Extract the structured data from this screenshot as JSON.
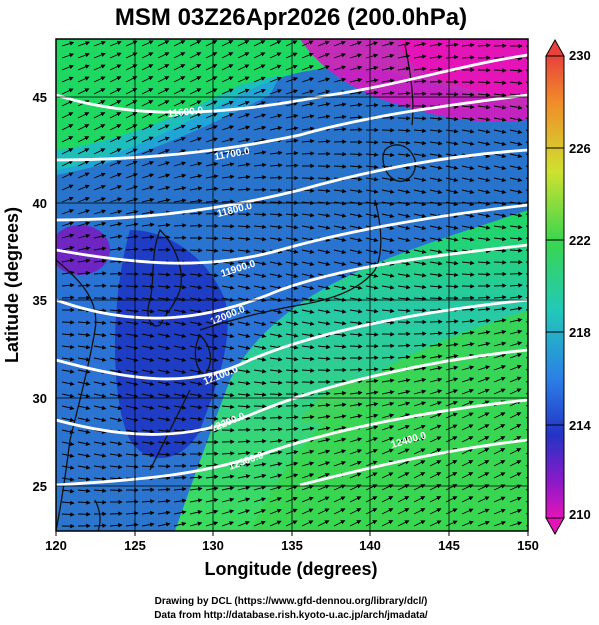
{
  "title": "MSM 03Z26Apr2026 (200.0hPa)",
  "x_axis": {
    "label": "Longitude (degrees)",
    "ticks": [
      "120",
      "125",
      "130",
      "135",
      "140",
      "145",
      "150"
    ]
  },
  "y_axis": {
    "label": "Latitude  (degrees)",
    "ticks": [
      "25",
      "30",
      "35",
      "40",
      "45"
    ]
  },
  "colorbar": {
    "ticks": [
      "230",
      "226",
      "222",
      "218",
      "214",
      "210"
    ],
    "min": 210,
    "max": 230
  },
  "credits": [
    "Drawing by DCL (https://www.gfd-dennou.org/library/dcl/)",
    "Data from http://database.rish.kyoto-u.ac.jp/arch/jmadata/"
  ],
  "contour_labels": [
    "11600.0",
    "11700.0",
    "11800.0",
    "11900.0",
    "12000.0",
    "12100.0",
    "12200.0",
    "12300.0",
    "12400.0"
  ],
  "colors": {
    "contour": "#ffffff",
    "coast": "#111111",
    "arrow": "#000000"
  }
}
